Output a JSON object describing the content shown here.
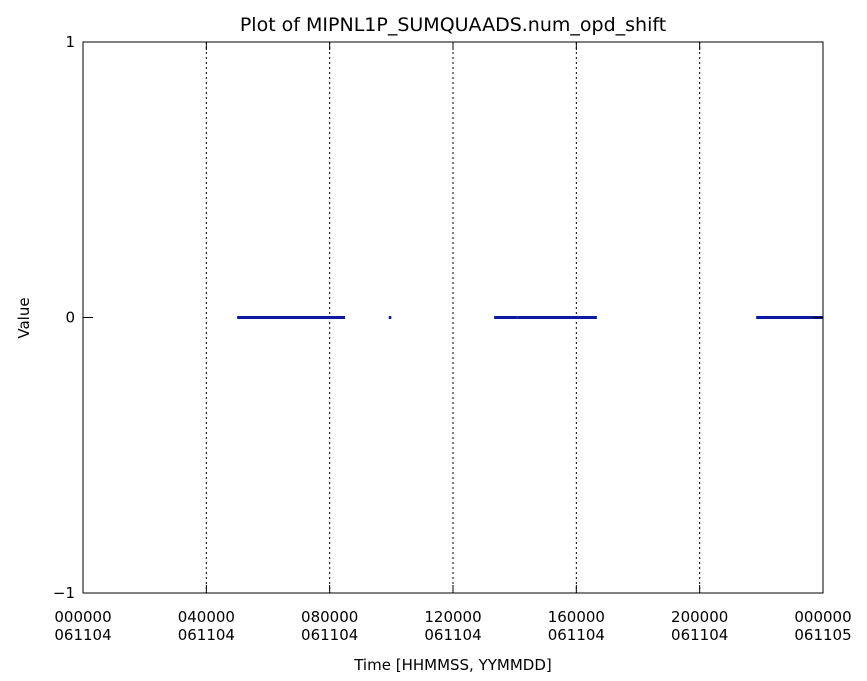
{
  "chart_data": {
    "type": "scatter",
    "title": "Plot of MIPNL1P_SUMQUAADS.num_opd_shift",
    "xlabel": "Time [HHMMSS, YYMMDD]",
    "ylabel": "Value",
    "xlim": [
      "061104 000000",
      "061105 000000"
    ],
    "ylim": [
      -1,
      1
    ],
    "grid": "vertical dotted lines at major x ticks",
    "legend": "none",
    "x_ticks": [
      {
        "time": "000000",
        "date": "061104"
      },
      {
        "time": "040000",
        "date": "061104"
      },
      {
        "time": "080000",
        "date": "061104"
      },
      {
        "time": "120000",
        "date": "061104"
      },
      {
        "time": "160000",
        "date": "061104"
      },
      {
        "time": "200000",
        "date": "061104"
      },
      {
        "time": "000000",
        "date": "061105"
      }
    ],
    "y_ticks": [
      "1",
      "0",
      "−1"
    ],
    "series": [
      {
        "color": "#0a1a9c",
        "marker": "dense points along value 0",
        "segments": [
          {
            "start": "050000",
            "end": "083000",
            "value": 0
          },
          {
            "start": "095500",
            "end": "100000",
            "value": 0
          },
          {
            "start": "132000",
            "end": "140500",
            "value": 0
          },
          {
            "start": "140500",
            "end": "164000",
            "value": 0
          },
          {
            "start": "215000",
            "end": "240000",
            "value": 0
          }
        ]
      }
    ]
  }
}
